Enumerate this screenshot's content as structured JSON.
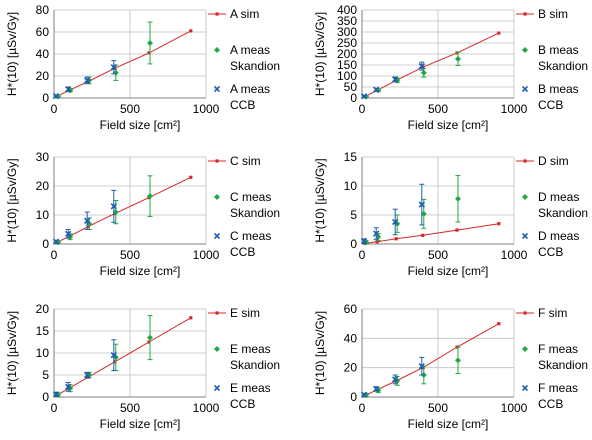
{
  "figure": {
    "x_label": "Field size [cm²]",
    "y_label": "H*(10) [µSv/Gy]",
    "x_ticks": [
      0,
      500,
      1000
    ],
    "xlim": [
      0,
      1000
    ]
  },
  "colors": {
    "sim": "#d62728",
    "skandion": "#22a845",
    "ccb": "#1f5fae",
    "grid": "#bfbfbf",
    "axis": "#808080"
  },
  "chart_data": [
    {
      "type": "scatter",
      "panel": "A",
      "yticks": [
        0,
        20,
        40,
        60,
        80
      ],
      "ylim": [
        0,
        80
      ],
      "legend": [
        "A sim",
        "A meas Skandion",
        "A meas CCB"
      ],
      "series": [
        {
          "name": "A sim",
          "kind": "line",
          "x": [
            20,
            100,
            225,
            400,
            625,
            900
          ],
          "y": [
            1.5,
            7,
            15,
            27,
            41,
            61
          ]
        },
        {
          "name": "A meas Skandion",
          "kind": "errorbar",
          "x": [
            20,
            100,
            225,
            400,
            625
          ],
          "y": [
            1.5,
            7,
            16,
            23,
            50
          ],
          "err": [
            1,
            1.5,
            3,
            7,
            19
          ]
        },
        {
          "name": "A meas CCB",
          "kind": "errorbar",
          "x": [
            20,
            100,
            225,
            400
          ],
          "y": [
            1.8,
            8,
            16,
            28
          ],
          "err": [
            1,
            2,
            3,
            6
          ]
        }
      ]
    },
    {
      "type": "scatter",
      "panel": "B",
      "yticks": [
        0,
        50,
        100,
        150,
        200,
        250,
        300,
        350,
        400
      ],
      "ylim": [
        0,
        400
      ],
      "legend": [
        "B sim",
        "B meas Skandion",
        "B meas CCB"
      ],
      "series": [
        {
          "name": "B sim",
          "kind": "line",
          "x": [
            20,
            100,
            225,
            400,
            625,
            900
          ],
          "y": [
            6,
            35,
            80,
            140,
            205,
            295
          ]
        },
        {
          "name": "B meas Skandion",
          "kind": "errorbar",
          "x": [
            20,
            100,
            225,
            400,
            625
          ],
          "y": [
            6,
            35,
            80,
            115,
            178
          ],
          "err": [
            3,
            6,
            10,
            20,
            30
          ]
        },
        {
          "name": "B meas CCB",
          "kind": "errorbar",
          "x": [
            20,
            100,
            225,
            400
          ],
          "y": [
            8,
            38,
            85,
            145
          ],
          "err": [
            4,
            6,
            10,
            18
          ]
        }
      ]
    },
    {
      "type": "scatter",
      "panel": "C",
      "yticks": [
        0,
        10,
        20,
        30
      ],
      "ylim": [
        0,
        30
      ],
      "legend": [
        "C sim",
        "C meas Skandion",
        "C meas CCB"
      ],
      "series": [
        {
          "name": "C sim",
          "kind": "line",
          "x": [
            20,
            100,
            225,
            400,
            625,
            900
          ],
          "y": [
            0.6,
            2.6,
            6,
            10.5,
            16,
            23
          ]
        },
        {
          "name": "C meas Skandion",
          "kind": "errorbar",
          "x": [
            20,
            100,
            225,
            400,
            625
          ],
          "y": [
            0.6,
            2.5,
            7,
            11,
            16.5
          ],
          "err": [
            0.5,
            1,
            2,
            4,
            7
          ]
        },
        {
          "name": "C meas CCB",
          "kind": "errorbar",
          "x": [
            20,
            100,
            225,
            400
          ],
          "y": [
            0.8,
            3.5,
            8,
            13
          ],
          "err": [
            0.5,
            1.5,
            3,
            5.5
          ]
        }
      ]
    },
    {
      "type": "scatter",
      "panel": "D",
      "yticks": [
        0,
        5,
        10,
        15
      ],
      "ylim": [
        0,
        15
      ],
      "legend": [
        "D sim",
        "D meas Skandion",
        "D meas CCB"
      ],
      "series": [
        {
          "name": "D sim",
          "kind": "line",
          "x": [
            20,
            100,
            225,
            400,
            625,
            900
          ],
          "y": [
            0.1,
            0.4,
            0.9,
            1.5,
            2.4,
            3.5
          ]
        },
        {
          "name": "D meas Skandion",
          "kind": "errorbar",
          "x": [
            20,
            100,
            225,
            400,
            625
          ],
          "y": [
            0.3,
            1.2,
            3.5,
            5.2,
            7.8
          ],
          "err": [
            0.3,
            0.6,
            1.5,
            2.5,
            4
          ]
        },
        {
          "name": "D meas CCB",
          "kind": "errorbar",
          "x": [
            20,
            100,
            225,
            400
          ],
          "y": [
            0.5,
            1.8,
            3.8,
            6.8
          ],
          "err": [
            0.4,
            1,
            2.2,
            3.5
          ]
        }
      ]
    },
    {
      "type": "scatter",
      "panel": "E",
      "yticks": [
        0,
        5,
        10,
        15,
        20
      ],
      "ylim": [
        0,
        20
      ],
      "legend": [
        "E sim",
        "E meas Skandion",
        "E meas CCB"
      ],
      "series": [
        {
          "name": "E sim",
          "kind": "line",
          "x": [
            20,
            100,
            225,
            400,
            625,
            900
          ],
          "y": [
            0.4,
            2,
            4.5,
            8,
            12.5,
            18
          ]
        },
        {
          "name": "E meas Skandion",
          "kind": "errorbar",
          "x": [
            20,
            100,
            225,
            400,
            625
          ],
          "y": [
            0.5,
            2,
            5,
            9,
            13.5
          ],
          "err": [
            0.4,
            0.8,
            0.6,
            3,
            5
          ]
        },
        {
          "name": "E meas CCB",
          "kind": "errorbar",
          "x": [
            20,
            100,
            225,
            400
          ],
          "y": [
            0.6,
            2.3,
            5,
            9.5
          ],
          "err": [
            0.5,
            1,
            0.6,
            3.5
          ]
        }
      ]
    },
    {
      "type": "scatter",
      "panel": "F",
      "yticks": [
        0,
        20,
        40,
        60
      ],
      "ylim": [
        0,
        60
      ],
      "legend": [
        "F sim",
        "F meas Skandion",
        "F meas CCB"
      ],
      "series": [
        {
          "name": "F sim",
          "kind": "line",
          "x": [
            20,
            100,
            225,
            400,
            625,
            900
          ],
          "y": [
            1,
            5,
            11,
            20,
            34,
            50
          ]
        },
        {
          "name": "F meas Skandion",
          "kind": "errorbar",
          "x": [
            20,
            100,
            225,
            400,
            625
          ],
          "y": [
            1.5,
            4.5,
            11,
            15,
            25
          ],
          "err": [
            1,
            1.5,
            3,
            6,
            9
          ]
        },
        {
          "name": "F meas CCB",
          "kind": "errorbar",
          "x": [
            20,
            100,
            225,
            400
          ],
          "y": [
            1.5,
            5.5,
            12,
            21
          ],
          "err": [
            1,
            1.5,
            3,
            6
          ]
        }
      ]
    }
  ]
}
